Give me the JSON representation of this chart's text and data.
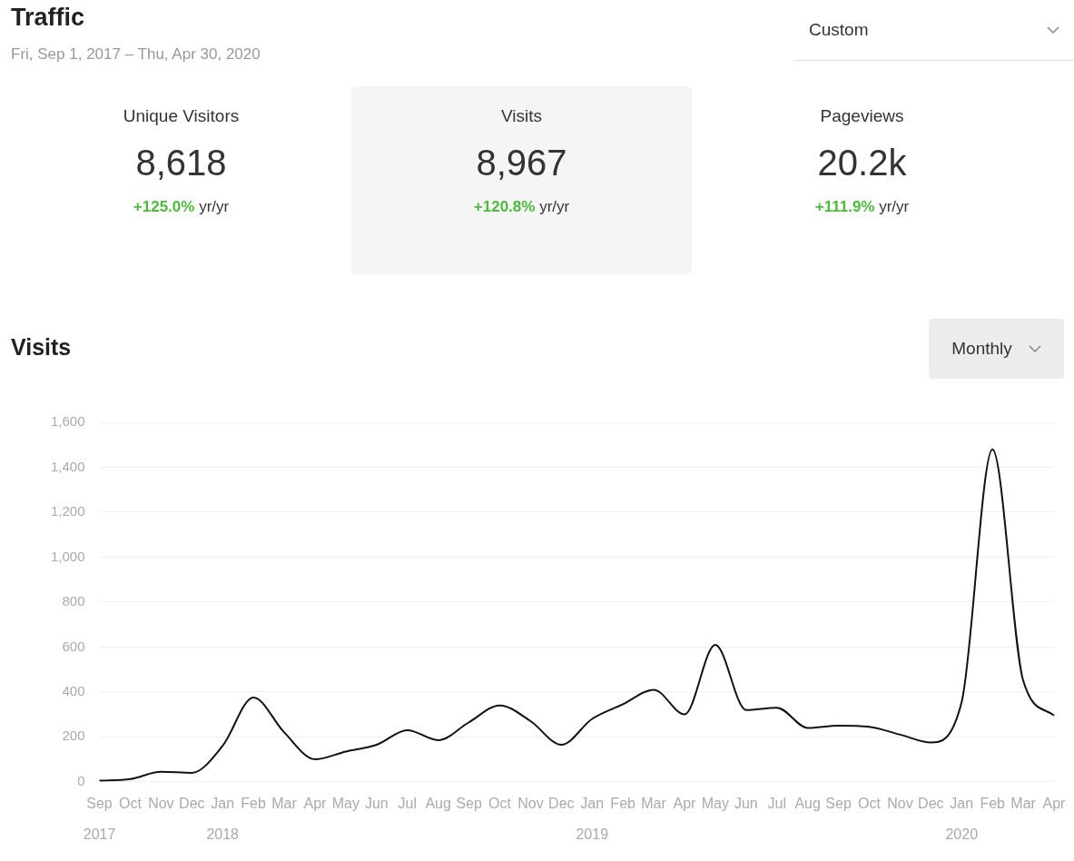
{
  "chart_data": [
    {
      "type": "other",
      "title": "Traffic",
      "subtitle": "Fri, Sep 1, 2017 – Thu, Apr 30, 2020",
      "annotations": [
        "Custom",
        "Unique Visitors",
        "8,618",
        "+125.0%",
        "yr/yr",
        "Visits",
        "8,967",
        "+120.8%",
        "yr/yr",
        "Pageviews",
        "20.2k",
        "+111.9%",
        "yr/yr"
      ]
    },
    {
      "type": "line",
      "title": "Visits",
      "annotations": [
        "Monthly"
      ],
      "categories": [
        "Sep 2017",
        "Oct",
        "Nov",
        "Dec",
        "Jan 2018",
        "Feb",
        "Mar",
        "Apr",
        "May",
        "Jun",
        "Jul",
        "Aug",
        "Sep",
        "Oct",
        "Nov",
        "Dec",
        "Jan 2019",
        "Feb",
        "Mar",
        "Apr",
        "May",
        "Jun",
        "Jul",
        "Aug",
        "Sep",
        "Oct",
        "Nov",
        "Dec",
        "Jan 2020",
        "Feb",
        "Mar",
        "Apr"
      ],
      "series": [
        {
          "color": "#111111",
          "values": [
            5,
            12,
            45,
            40,
            160,
            375,
            220,
            100,
            135,
            165,
            230,
            185,
            265,
            340,
            270,
            165,
            280,
            345,
            410,
            300,
            610,
            320,
            330,
            240,
            250,
            245,
            210,
            175,
            355,
            1480,
            450,
            295
          ]
        }
      ],
      "ylim": [
        0,
        1600
      ],
      "yticks": [
        0,
        200,
        400,
        600,
        800,
        {
          "value": 1000,
          "label": "1,000"
        },
        {
          "value": 1200,
          "label": "1,200"
        },
        {
          "value": 1400,
          "label": "1,400"
        },
        {
          "value": 1600,
          "label": "1,600"
        }
      ],
      "grid": "y",
      "marker": "none",
      "legend": false
    }
  ]
}
